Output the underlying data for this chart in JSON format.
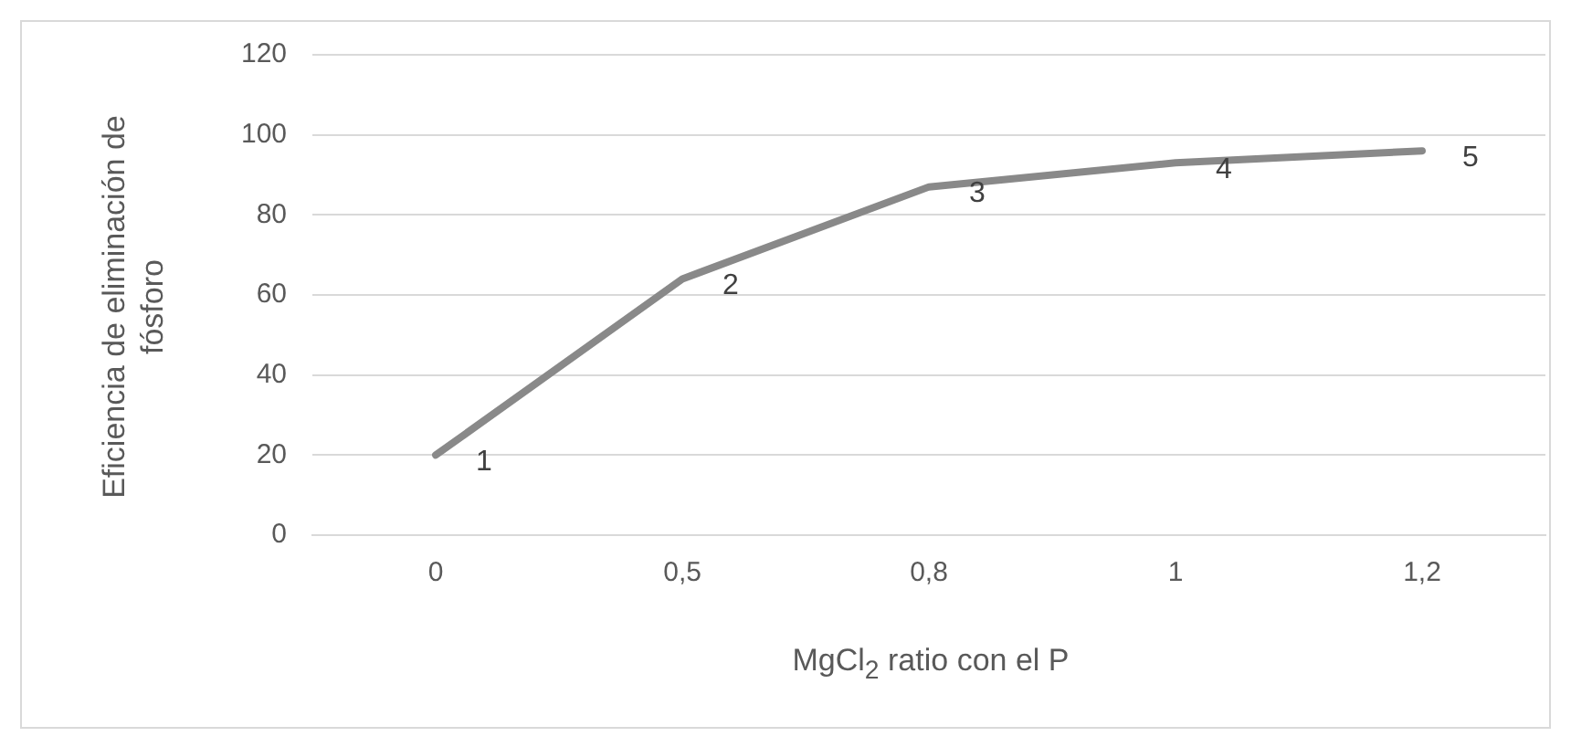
{
  "chart_data": {
    "type": "line",
    "xlabel": "MgCl$_{2}$ ratio con el P",
    "ylabel": "Eficiencia de eliminación de fósforo",
    "categories": [
      "0",
      "0,5",
      "0,8",
      "1",
      "1,2"
    ],
    "series": [
      {
        "color": "#898989",
        "values": [
          20,
          64,
          87,
          93,
          96
        ]
      }
    ],
    "ylim": [
      0,
      120
    ],
    "yticks": [
      0,
      20,
      40,
      60,
      80,
      100,
      120
    ],
    "grid": "y",
    "legend": false,
    "marker": "none",
    "line_style": "solid",
    "annotations": [
      {
        "text": "1",
        "x": "0",
        "y": 20
      },
      {
        "text": "2",
        "x": "0,5",
        "y": 64
      },
      {
        "text": "3",
        "x": "0,8",
        "y": 87
      },
      {
        "text": "4",
        "x": "1",
        "y": 93
      },
      {
        "text": "5",
        "x": "1,2",
        "y": 96
      }
    ]
  }
}
